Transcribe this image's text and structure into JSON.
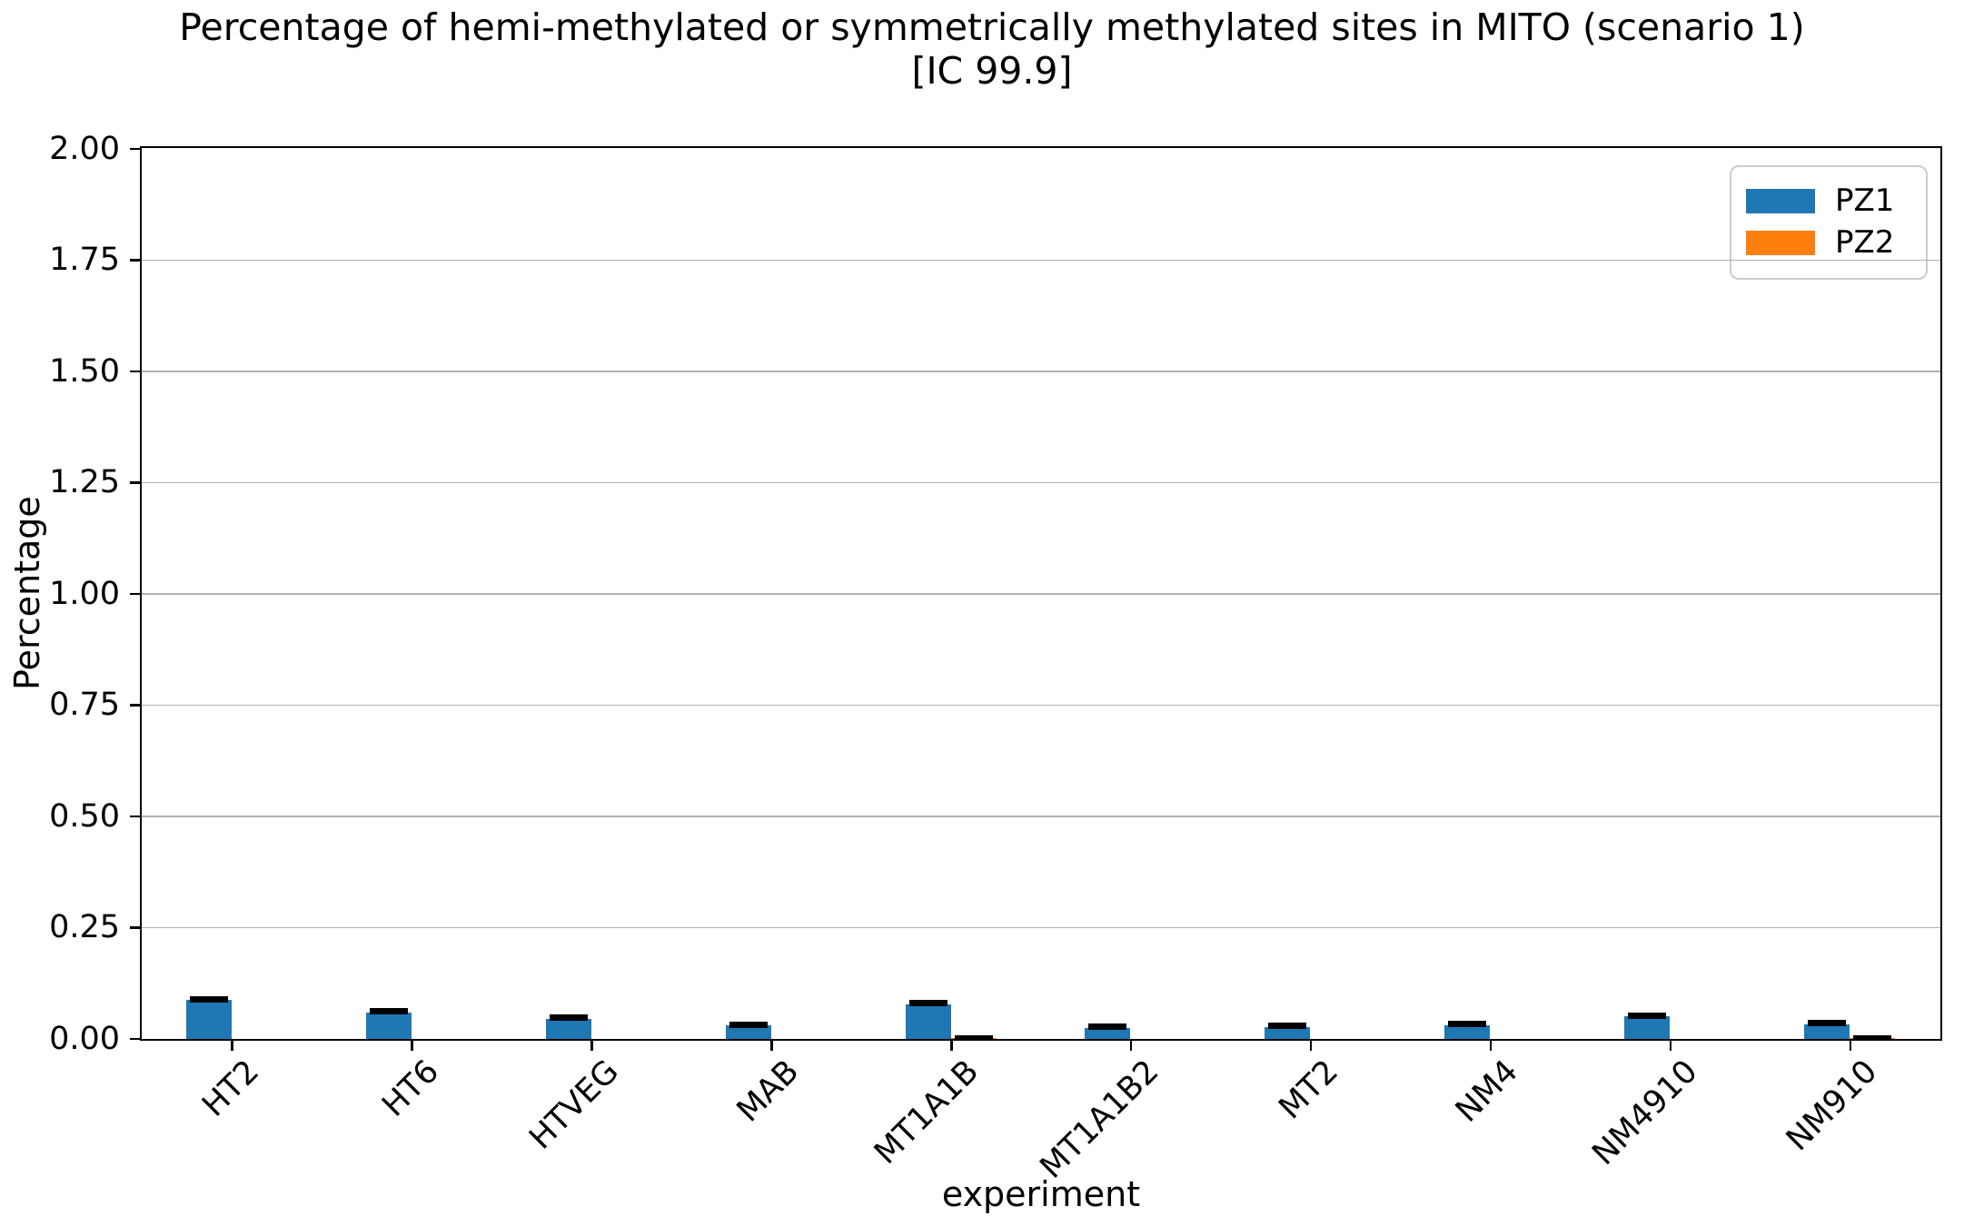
{
  "chart_data": {
    "type": "bar",
    "title": "Percentage of hemi-methylated or symmetrically methylated sites in MITO (scenario 1)",
    "subtitle": "[IC 99.9]",
    "xlabel": "experiment",
    "ylabel": "Percentage",
    "ylim": [
      0,
      2
    ],
    "grid": true,
    "legend_position": "upper right",
    "ytick_labels": [
      "0.00",
      "0.25",
      "0.50",
      "0.75",
      "1.00",
      "1.25",
      "1.50",
      "1.75",
      "2.00"
    ],
    "ytick_values": [
      0,
      0.25,
      0.5,
      0.75,
      1.0,
      1.25,
      1.5,
      1.75,
      2.0
    ],
    "categories": [
      "HT2",
      "HT6",
      "HTVEG",
      "MAB",
      "MT1A1B",
      "MT1A1B2",
      "MT2",
      "NM4",
      "NM4910",
      "NM910"
    ],
    "series": [
      {
        "name": "PZ1",
        "color": "#1f77b4",
        "values": [
          0.087,
          0.06,
          0.045,
          0.03,
          0.078,
          0.025,
          0.027,
          0.031,
          0.051,
          0.033
        ],
        "errors": [
          0.006,
          0.005,
          0.005,
          0.004,
          0.006,
          0.004,
          0.004,
          0.004,
          0.005,
          0.005
        ]
      },
      {
        "name": "PZ2",
        "color": "#ff7f0e",
        "values": [
          0,
          0,
          0,
          0,
          0.003,
          0,
          0,
          0,
          0,
          0.003
        ],
        "errors": [
          0,
          0,
          0,
          0,
          0.002,
          0,
          0,
          0,
          0,
          0.002
        ]
      }
    ]
  }
}
